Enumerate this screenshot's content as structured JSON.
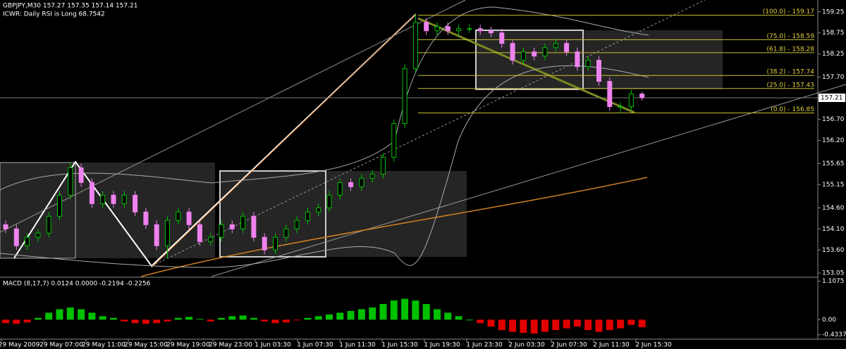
{
  "chart_data": {
    "type": "candlestick",
    "title": "GBPJPY,M30  157.27 157.35 157.14 157.21",
    "subtitle": "ICWR: Daily RSI is Long 68.7542",
    "up_color": "#00c000",
    "down_color": "#ee82ee",
    "ylim": [
      152.97,
      159.53
    ],
    "yticks": [
      159.25,
      158.75,
      158.25,
      {
        "value": 157.7,
        "label": "157.70"
      },
      {
        "value": 157.2,
        "label": "157.20"
      },
      {
        "value": 156.7,
        "label": "156.70"
      },
      {
        "value": 156.2,
        "label": "156.20"
      },
      155.65,
      155.15,
      {
        "value": 154.6,
        "label": "154.60"
      },
      {
        "value": 154.1,
        "label": "154.10"
      },
      {
        "value": 153.6,
        "label": "153.60"
      },
      153.05
    ],
    "last": 157.21,
    "xlabels": [
      "29 May 2009",
      "29 May 07:00",
      "29 May 11:00",
      "29 May 15:00",
      "29 May 19:00",
      "29 May 23:00",
      "1 Jun 03:30",
      "1 Jun 07:30",
      "1 Jun 11:30",
      "1 Jun 15:30",
      "1 Jun 19:30",
      "1 Jun 23:30",
      "2 Jun 03:30",
      "2 Jun 07:30",
      "2 Jun 11:30",
      "2 Jun 15:30"
    ],
    "open": [
      154.2,
      154.1,
      153.7,
      153.9,
      154.0,
      154.4,
      154.9,
      155.55,
      155.2,
      154.7,
      154.9,
      154.7,
      154.9,
      154.5,
      154.2,
      153.7,
      154.3,
      154.5,
      154.2,
      153.8,
      153.9,
      154.2,
      154.1,
      154.4,
      153.9,
      153.6,
      153.9,
      154.1,
      154.3,
      154.5,
      154.6,
      154.9,
      155.2,
      155.1,
      155.3,
      155.4,
      155.8,
      156.6,
      157.9,
      159.0,
      158.8,
      158.9,
      158.8,
      158.85,
      158.85,
      158.8,
      158.75,
      158.5,
      158.1,
      158.3,
      158.2,
      158.4,
      158.5,
      158.3,
      157.95,
      158.1,
      157.6,
      157.0,
      157.0,
      157.3
    ],
    "high": [
      154.3,
      154.2,
      154.0,
      154.1,
      154.5,
      155.0,
      155.68,
      155.65,
      155.3,
      155.0,
      155.0,
      155.0,
      155.0,
      154.6,
      154.3,
      154.4,
      154.6,
      154.6,
      154.3,
      154.0,
      154.3,
      154.3,
      154.5,
      154.5,
      154.0,
      154.0,
      154.2,
      154.4,
      154.6,
      154.7,
      155.0,
      155.3,
      155.3,
      155.4,
      155.5,
      155.9,
      156.7,
      158.0,
      159.2,
      159.1,
      159.0,
      159.0,
      158.95,
      158.95,
      158.95,
      158.9,
      158.85,
      158.6,
      158.4,
      158.4,
      158.5,
      158.6,
      158.6,
      158.4,
      158.2,
      158.2,
      157.7,
      157.1,
      157.4,
      157.35
    ],
    "low": [
      154.0,
      153.6,
      153.6,
      153.8,
      153.9,
      154.3,
      154.8,
      155.1,
      154.6,
      154.6,
      154.6,
      154.6,
      154.4,
      154.1,
      153.6,
      153.4,
      154.2,
      154.1,
      153.7,
      153.7,
      153.8,
      154.0,
      154.0,
      153.8,
      153.5,
      153.5,
      153.8,
      154.0,
      154.2,
      154.4,
      154.5,
      154.8,
      155.0,
      155.0,
      155.2,
      155.3,
      155.7,
      156.5,
      157.8,
      158.7,
      158.7,
      158.7,
      158.7,
      158.75,
      158.7,
      158.65,
      158.4,
      158.0,
      158.0,
      158.1,
      158.1,
      158.3,
      158.2,
      157.85,
      157.85,
      157.5,
      156.9,
      156.85,
      156.9,
      157.14
    ],
    "close": [
      154.1,
      153.7,
      153.9,
      154.0,
      154.4,
      154.9,
      155.55,
      155.2,
      154.7,
      154.9,
      154.7,
      154.9,
      154.5,
      154.2,
      153.7,
      154.3,
      154.5,
      154.2,
      153.8,
      153.9,
      154.2,
      154.1,
      154.4,
      153.9,
      153.6,
      153.9,
      154.1,
      154.3,
      154.5,
      154.6,
      154.9,
      155.2,
      155.1,
      155.3,
      155.4,
      155.8,
      156.6,
      157.9,
      159.0,
      158.8,
      158.9,
      158.8,
      158.85,
      158.85,
      158.8,
      158.75,
      158.5,
      158.1,
      158.3,
      158.2,
      158.4,
      158.5,
      158.3,
      157.95,
      158.1,
      157.6,
      157.0,
      157.0,
      157.3,
      157.21
    ],
    "fib_levels": [
      {
        "label": "(100.0) - 159.17",
        "value": 159.17
      },
      {
        "label": "(75.0) - 158.59",
        "value": 158.59
      },
      {
        "label": "(61.8) - 158.28",
        "value": 158.28
      },
      {
        "label": "(38.2) - 157.74",
        "value": 157.74
      },
      {
        "label": "(25.0) - 157.43",
        "value": 157.43
      },
      {
        "label": "(0.0) - 156.85",
        "value": 156.85
      }
    ],
    "macd": {
      "label": "MACD  (8,17,7) 0.0124 0.0000 -0.2194 -0.2256",
      "ylim": [
        -0.52,
        1.18
      ],
      "yticks": [
        1.1075,
        {
          "value": 0,
          "label": "0.00"
        },
        -0.4337
      ],
      "values": [
        -0.1,
        -0.12,
        -0.08,
        0.05,
        0.2,
        0.3,
        0.35,
        0.3,
        0.2,
        0.1,
        0.05,
        -0.05,
        -0.1,
        -0.12,
        -0.1,
        -0.05,
        0.05,
        0.08,
        0.02,
        -0.05,
        0.05,
        0.1,
        0.12,
        0.05,
        -0.05,
        -0.1,
        -0.08,
        -0.02,
        0.05,
        0.1,
        0.15,
        0.2,
        0.25,
        0.3,
        0.35,
        0.45,
        0.55,
        0.6,
        0.55,
        0.45,
        0.3,
        0.2,
        0.1,
        0.0,
        -0.1,
        -0.2,
        -0.3,
        -0.35,
        -0.38,
        -0.4,
        -0.35,
        -0.3,
        -0.25,
        -0.2,
        -0.3,
        -0.35,
        -0.3,
        -0.25,
        -0.15,
        -0.22
      ]
    }
  }
}
